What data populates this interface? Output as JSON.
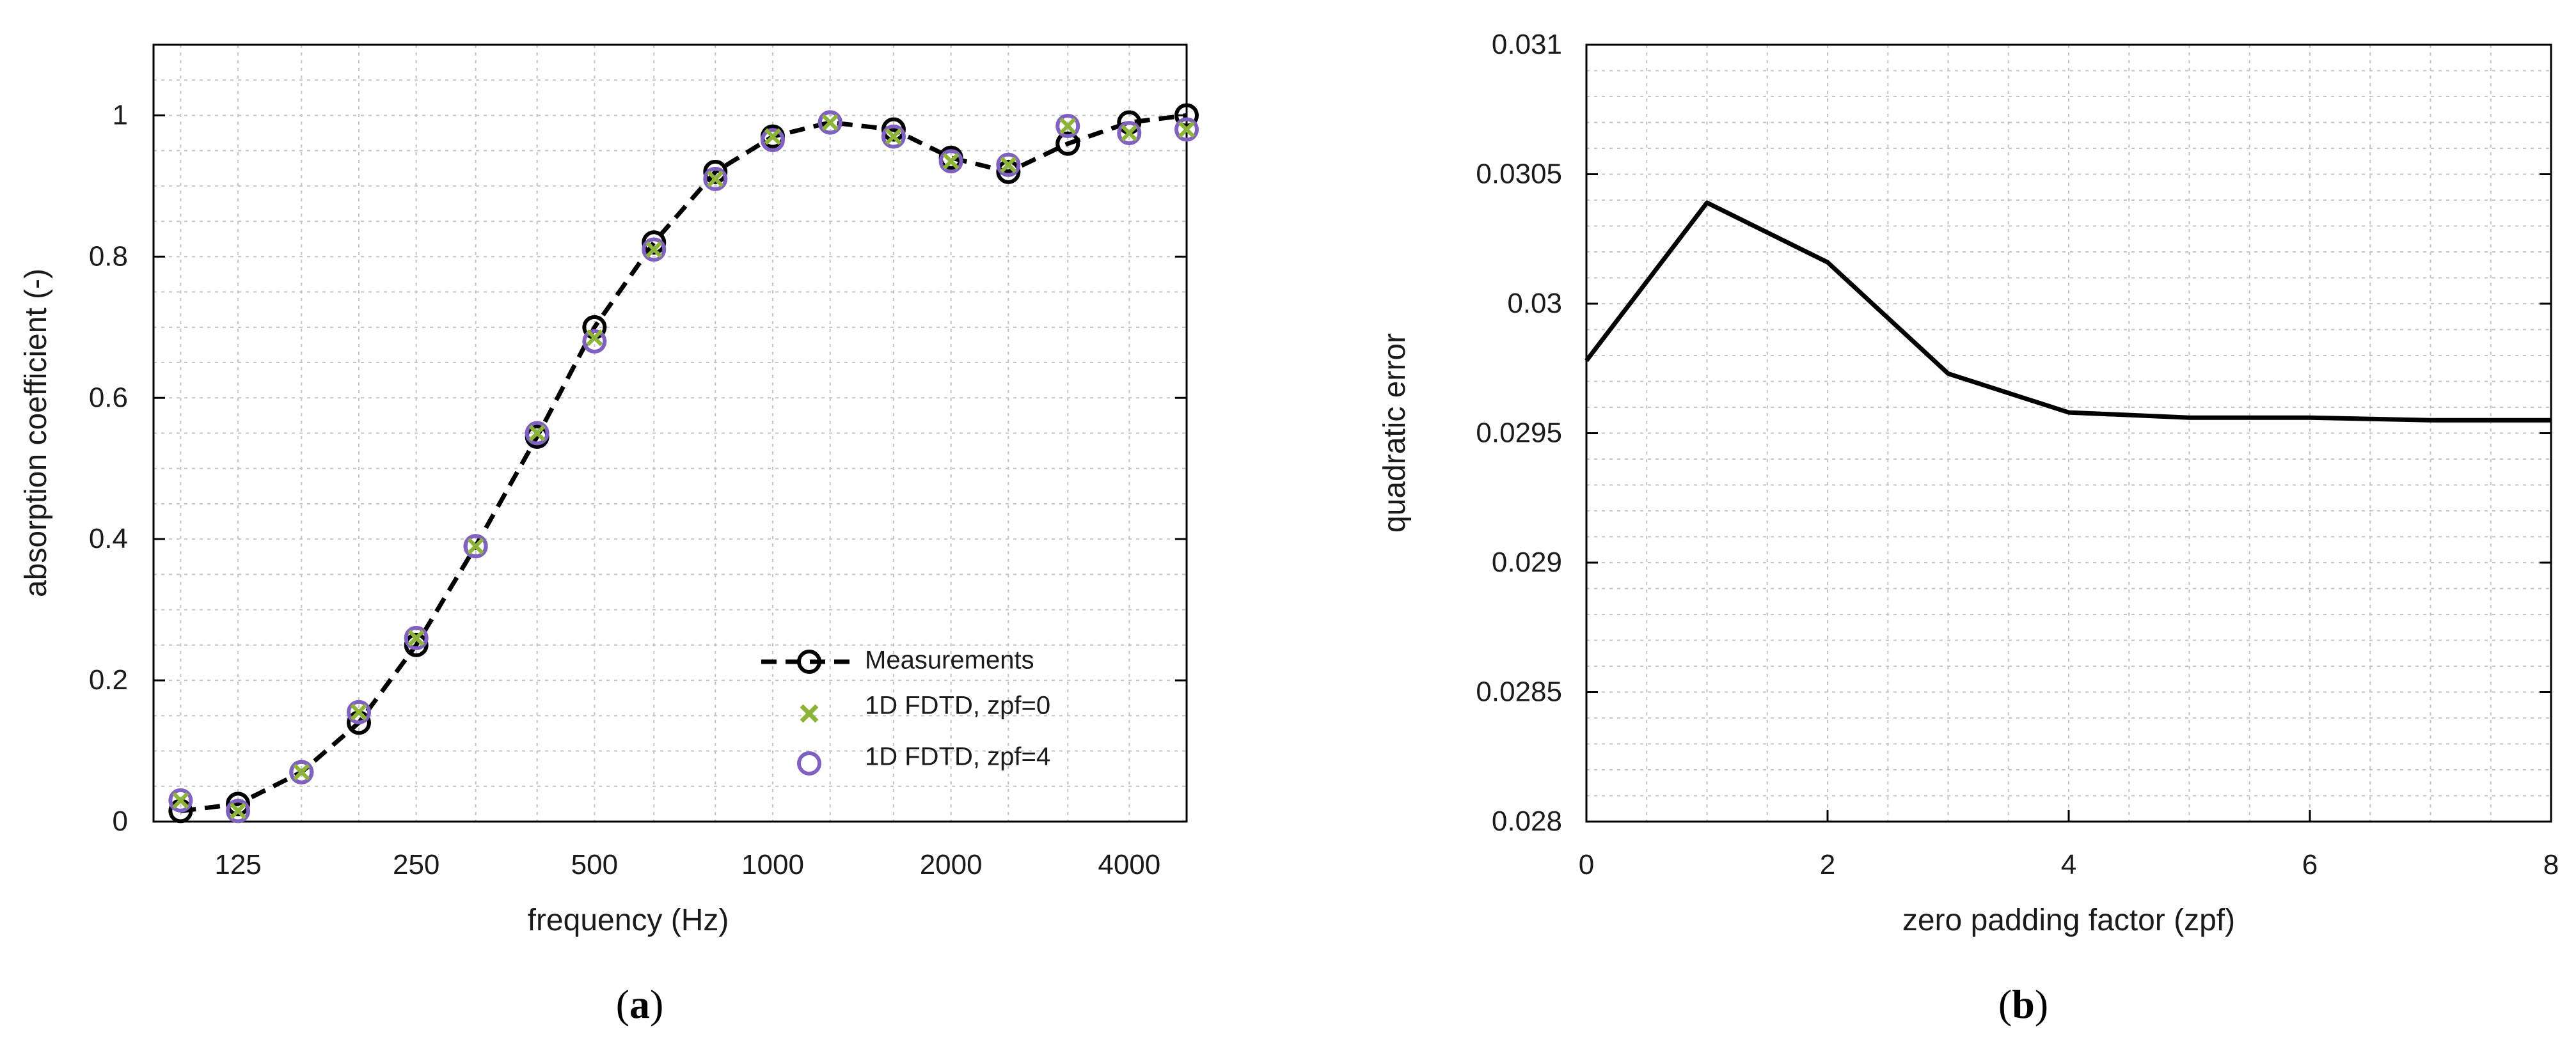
{
  "chart_data": [
    {
      "panel": "a",
      "type": "scatter",
      "xlabel": "frequency (Hz)",
      "ylabel": "absorption coefficient (-)",
      "xscale": "log",
      "xlim": [
        90,
        5000
      ],
      "ylim": [
        0,
        1.1
      ],
      "x_ticks": [
        125,
        250,
        500,
        1000,
        2000,
        4000
      ],
      "x_tick_labels": [
        "125",
        "250",
        "500",
        "1000",
        "2000",
        "4000"
      ],
      "y_ticks": [
        0,
        0.2,
        0.4,
        0.6,
        0.8,
        1
      ],
      "y_tick_labels": [
        "0",
        "0.2",
        "0.4",
        "0.6",
        "0.8",
        "1"
      ],
      "grid": true,
      "legend_position": "bottom-right",
      "x": [
        100,
        125,
        160,
        200,
        250,
        315,
        400,
        500,
        630,
        800,
        1000,
        1250,
        1600,
        2000,
        2500,
        3150,
        4000,
        5000
      ],
      "series": [
        {
          "name": "Measurements",
          "style": "dashed-line-circle",
          "color": "#000000",
          "values": [
            0.015,
            0.025,
            0.07,
            0.14,
            0.25,
            0.39,
            0.545,
            0.7,
            0.82,
            0.92,
            0.97,
            0.99,
            0.98,
            0.94,
            0.92,
            0.96,
            0.99,
            1.0
          ]
        },
        {
          "name": "1D FDTD, zpf=0",
          "style": "x-marker",
          "color": "#8db33a",
          "values": [
            0.03,
            0.015,
            0.07,
            0.155,
            0.26,
            0.39,
            0.55,
            0.685,
            0.81,
            0.91,
            0.97,
            0.99,
            0.97,
            0.935,
            0.93,
            0.985,
            0.975,
            0.98
          ]
        },
        {
          "name": "1D FDTD, zpf=4",
          "style": "open-circle",
          "color": "#8060c0",
          "values": [
            0.03,
            0.015,
            0.07,
            0.155,
            0.26,
            0.39,
            0.55,
            0.68,
            0.81,
            0.91,
            0.965,
            0.99,
            0.97,
            0.935,
            0.93,
            0.985,
            0.975,
            0.98
          ]
        }
      ]
    },
    {
      "panel": "b",
      "type": "line",
      "xlabel": "zero padding factor (zpf)",
      "ylabel": "quadratic error",
      "xlim": [
        0,
        8
      ],
      "ylim": [
        0.028,
        0.031
      ],
      "x_ticks": [
        0,
        2,
        4,
        6,
        8
      ],
      "x_tick_labels": [
        "0",
        "2",
        "4",
        "6",
        "8"
      ],
      "y_ticks": [
        0.028,
        0.0285,
        0.029,
        0.0295,
        0.03,
        0.0305,
        0.031
      ],
      "y_tick_labels": [
        "0.028",
        "0.0285",
        "0.029",
        "0.0295",
        "0.03",
        "0.0305",
        "0.031"
      ],
      "grid": true,
      "x": [
        0,
        1,
        2,
        3,
        4,
        5,
        6,
        7,
        8
      ],
      "series": [
        {
          "color": "#000000",
          "values": [
            0.02978,
            0.03039,
            0.03016,
            0.02973,
            0.02958,
            0.02956,
            0.02956,
            0.02955,
            0.02955
          ]
        }
      ]
    }
  ],
  "captions": {
    "a_open": "(",
    "a_letter": "a",
    "a_close": ")",
    "b_open": "(",
    "b_letter": "b",
    "b_close": ")"
  }
}
